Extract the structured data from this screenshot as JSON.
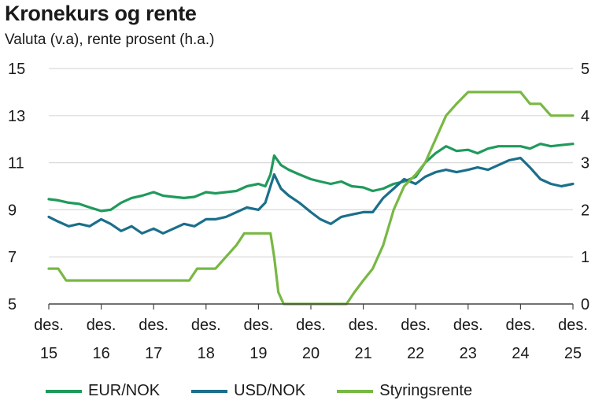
{
  "header": {
    "title": "Kronekurs og rente",
    "subtitle": "Valuta (v.a), rente prosent (h.a.)"
  },
  "colors": {
    "eur": "#1f9a5c",
    "usd": "#1b6f8a",
    "rate": "#78b843",
    "grid": "#d9d9d9",
    "axis": "#444444"
  },
  "chart_data": {
    "type": "line",
    "title": "Kronekurs og rente",
    "subtitle": "Valuta (v.a), rente prosent (h.a.)",
    "x_ticks": [
      {
        "t": 2015.92,
        "line1": "des.",
        "line2": "15"
      },
      {
        "t": 2016.92,
        "line1": "des.",
        "line2": "16"
      },
      {
        "t": 2017.92,
        "line1": "des.",
        "line2": "17"
      },
      {
        "t": 2018.92,
        "line1": "des.",
        "line2": "18"
      },
      {
        "t": 2019.92,
        "line1": "des.",
        "line2": "19"
      },
      {
        "t": 2020.92,
        "line1": "des.",
        "line2": "20"
      },
      {
        "t": 2021.92,
        "line1": "des.",
        "line2": "21"
      },
      {
        "t": 2022.92,
        "line1": "des.",
        "line2": "22"
      },
      {
        "t": 2023.92,
        "line1": "des.",
        "line2": "23"
      },
      {
        "t": 2024.92,
        "line1": "des.",
        "line2": "24"
      },
      {
        "t": 2025.92,
        "line1": "des.",
        "line2": "25"
      }
    ],
    "xlim": [
      2015.92,
      2025.92
    ],
    "y_left": {
      "ticks": [
        5,
        7,
        9,
        11,
        13,
        15
      ],
      "lim": [
        5,
        15
      ]
    },
    "y_right": {
      "ticks": [
        0,
        1,
        2,
        3,
        4,
        5
      ],
      "lim": [
        0,
        5
      ]
    },
    "grid": true,
    "legend_position": "bottom",
    "series": [
      {
        "name": "EUR/NOK",
        "axis": "left",
        "color_key": "eur",
        "points": [
          [
            2015.92,
            9.45
          ],
          [
            2016.1,
            9.4
          ],
          [
            2016.3,
            9.3
          ],
          [
            2016.5,
            9.25
          ],
          [
            2016.7,
            9.1
          ],
          [
            2016.92,
            8.95
          ],
          [
            2017.1,
            9.0
          ],
          [
            2017.3,
            9.3
          ],
          [
            2017.5,
            9.5
          ],
          [
            2017.7,
            9.6
          ],
          [
            2017.92,
            9.75
          ],
          [
            2018.1,
            9.6
          ],
          [
            2018.3,
            9.55
          ],
          [
            2018.5,
            9.5
          ],
          [
            2018.7,
            9.55
          ],
          [
            2018.92,
            9.75
          ],
          [
            2019.1,
            9.7
          ],
          [
            2019.3,
            9.75
          ],
          [
            2019.5,
            9.8
          ],
          [
            2019.7,
            10.0
          ],
          [
            2019.92,
            10.1
          ],
          [
            2020.05,
            10.0
          ],
          [
            2020.15,
            10.5
          ],
          [
            2020.22,
            11.3
          ],
          [
            2020.35,
            10.9
          ],
          [
            2020.5,
            10.7
          ],
          [
            2020.7,
            10.5
          ],
          [
            2020.92,
            10.3
          ],
          [
            2021.1,
            10.2
          ],
          [
            2021.3,
            10.1
          ],
          [
            2021.5,
            10.2
          ],
          [
            2021.7,
            10.0
          ],
          [
            2021.92,
            9.95
          ],
          [
            2022.1,
            9.8
          ],
          [
            2022.3,
            9.9
          ],
          [
            2022.5,
            10.1
          ],
          [
            2022.7,
            10.2
          ],
          [
            2022.92,
            10.4
          ],
          [
            2023.1,
            11.0
          ],
          [
            2023.3,
            11.4
          ],
          [
            2023.5,
            11.7
          ],
          [
            2023.7,
            11.5
          ],
          [
            2023.92,
            11.55
          ],
          [
            2024.1,
            11.4
          ],
          [
            2024.3,
            11.6
          ],
          [
            2024.5,
            11.7
          ],
          [
            2024.7,
            11.7
          ],
          [
            2024.92,
            11.7
          ],
          [
            2025.1,
            11.6
          ],
          [
            2025.3,
            11.8
          ],
          [
            2025.5,
            11.7
          ],
          [
            2025.7,
            11.75
          ],
          [
            2025.92,
            11.8
          ]
        ]
      },
      {
        "name": "USD/NOK",
        "axis": "left",
        "color_key": "usd",
        "points": [
          [
            2015.92,
            8.7
          ],
          [
            2016.1,
            8.5
          ],
          [
            2016.3,
            8.3
          ],
          [
            2016.5,
            8.4
          ],
          [
            2016.7,
            8.3
          ],
          [
            2016.92,
            8.6
          ],
          [
            2017.1,
            8.4
          ],
          [
            2017.3,
            8.1
          ],
          [
            2017.5,
            8.3
          ],
          [
            2017.7,
            8.0
          ],
          [
            2017.92,
            8.2
          ],
          [
            2018.1,
            8.0
          ],
          [
            2018.3,
            8.2
          ],
          [
            2018.5,
            8.4
          ],
          [
            2018.7,
            8.3
          ],
          [
            2018.92,
            8.6
          ],
          [
            2019.1,
            8.6
          ],
          [
            2019.3,
            8.7
          ],
          [
            2019.5,
            8.9
          ],
          [
            2019.7,
            9.1
          ],
          [
            2019.92,
            9.0
          ],
          [
            2020.05,
            9.3
          ],
          [
            2020.15,
            10.0
          ],
          [
            2020.22,
            10.5
          ],
          [
            2020.35,
            9.9
          ],
          [
            2020.5,
            9.6
          ],
          [
            2020.7,
            9.3
          ],
          [
            2020.92,
            8.9
          ],
          [
            2021.1,
            8.6
          ],
          [
            2021.3,
            8.4
          ],
          [
            2021.5,
            8.7
          ],
          [
            2021.7,
            8.8
          ],
          [
            2021.92,
            8.9
          ],
          [
            2022.1,
            8.9
          ],
          [
            2022.3,
            9.5
          ],
          [
            2022.5,
            9.9
          ],
          [
            2022.7,
            10.3
          ],
          [
            2022.92,
            10.1
          ],
          [
            2023.1,
            10.4
          ],
          [
            2023.3,
            10.6
          ],
          [
            2023.5,
            10.7
          ],
          [
            2023.7,
            10.6
          ],
          [
            2023.92,
            10.7
          ],
          [
            2024.1,
            10.8
          ],
          [
            2024.3,
            10.7
          ],
          [
            2024.5,
            10.9
          ],
          [
            2024.7,
            11.1
          ],
          [
            2024.92,
            11.2
          ],
          [
            2025.1,
            10.8
          ],
          [
            2025.3,
            10.3
          ],
          [
            2025.5,
            10.1
          ],
          [
            2025.7,
            10.0
          ],
          [
            2025.92,
            10.1
          ]
        ]
      },
      {
        "name": "Styringsrente",
        "axis": "right",
        "color_key": "rate",
        "points": [
          [
            2015.92,
            0.75
          ],
          [
            2016.1,
            0.75
          ],
          [
            2016.25,
            0.5
          ],
          [
            2018.6,
            0.5
          ],
          [
            2018.75,
            0.75
          ],
          [
            2019.1,
            0.75
          ],
          [
            2019.3,
            1.0
          ],
          [
            2019.5,
            1.25
          ],
          [
            2019.65,
            1.5
          ],
          [
            2020.15,
            1.5
          ],
          [
            2020.22,
            1.0
          ],
          [
            2020.3,
            0.25
          ],
          [
            2020.4,
            0.0
          ],
          [
            2021.6,
            0.0
          ],
          [
            2021.75,
            0.25
          ],
          [
            2021.92,
            0.5
          ],
          [
            2022.1,
            0.75
          ],
          [
            2022.3,
            1.25
          ],
          [
            2022.5,
            2.0
          ],
          [
            2022.7,
            2.5
          ],
          [
            2022.92,
            2.75
          ],
          [
            2023.1,
            3.0
          ],
          [
            2023.3,
            3.5
          ],
          [
            2023.5,
            4.0
          ],
          [
            2023.7,
            4.25
          ],
          [
            2023.92,
            4.5
          ],
          [
            2024.6,
            4.5
          ],
          [
            2024.92,
            4.5
          ],
          [
            2025.1,
            4.25
          ],
          [
            2025.3,
            4.25
          ],
          [
            2025.5,
            4.0
          ],
          [
            2025.92,
            4.0
          ]
        ]
      }
    ]
  }
}
